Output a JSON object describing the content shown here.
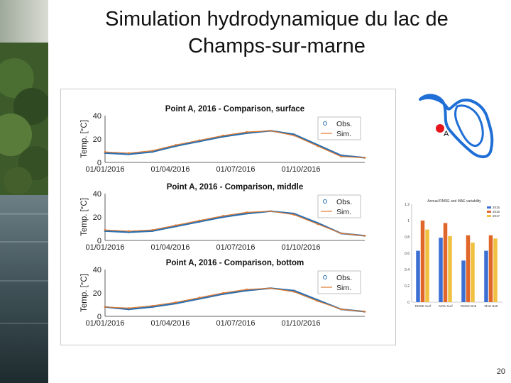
{
  "slide": {
    "title_line1": "Simulation hydrodynamique du lac de",
    "title_line2": "Champs-sur-marne",
    "page_number": "20"
  },
  "map": {
    "point_label": "A",
    "point_color": "#e8141c",
    "outline_color": "#1f6fd6"
  },
  "colors": {
    "obs": "#2a6fb0",
    "sim": "#e07a30",
    "bar_2015": "#3b6fd4",
    "bar_2016": "#e0662a",
    "bar_2017": "#f0c040"
  },
  "chart_data": [
    {
      "type": "line",
      "title": "Point A, 2016 - Comparison, surface",
      "ylabel": "Temp. [°C]",
      "ylim": [
        0,
        40
      ],
      "yticks": [
        "0",
        "20",
        "40"
      ],
      "xticks": [
        "01/01/2016",
        "01/04/2016",
        "01/07/2016",
        "01/10/2016"
      ],
      "legend": [
        "Obs.",
        "Sim."
      ],
      "legend_position": "top-right",
      "x": [
        "2016-01",
        "2016-02",
        "2016-03",
        "2016-04",
        "2016-05",
        "2016-06",
        "2016-07",
        "2016-08",
        "2016-09",
        "2016-10",
        "2016-11",
        "2016-12"
      ],
      "series": [
        {
          "name": "Obs.",
          "values": [
            8,
            7,
            9,
            14,
            18,
            22,
            25,
            27,
            24,
            15,
            6,
            4
          ]
        },
        {
          "name": "Sim.",
          "values": [
            9,
            8,
            10,
            15,
            19,
            23,
            26,
            27,
            23,
            14,
            5,
            4
          ]
        }
      ]
    },
    {
      "type": "line",
      "title": "Point A, 2016 - Comparison, middle",
      "ylabel": "Temp. [°C]",
      "ylim": [
        0,
        40
      ],
      "yticks": [
        "0",
        "20",
        "40"
      ],
      "xticks": [
        "01/01/2016",
        "01/04/2016",
        "01/07/2016",
        "01/10/2016"
      ],
      "legend": [
        "Obs.",
        "Sim."
      ],
      "legend_position": "top-right",
      "x": [
        "2016-01",
        "2016-02",
        "2016-03",
        "2016-04",
        "2016-05",
        "2016-06",
        "2016-07",
        "2016-08",
        "2016-09",
        "2016-10",
        "2016-11",
        "2016-12"
      ],
      "series": [
        {
          "name": "Obs.",
          "values": [
            8,
            7,
            8,
            12,
            16,
            20,
            23,
            25,
            23,
            15,
            6,
            4
          ]
        },
        {
          "name": "Sim.",
          "values": [
            9,
            8,
            9,
            13,
            17,
            21,
            24,
            25,
            22,
            14,
            6,
            4
          ]
        }
      ]
    },
    {
      "type": "line",
      "title": "Point A, 2016 - Comparison, bottom",
      "ylabel": "Temp. [°C]",
      "ylim": [
        0,
        40
      ],
      "yticks": [
        "0",
        "20",
        "40"
      ],
      "xticks": [
        "01/01/2016",
        "01/04/2016",
        "01/07/2016",
        "01/10/2016"
      ],
      "legend": [
        "Obs.",
        "Sim."
      ],
      "legend_position": "top-right",
      "x": [
        "2016-01",
        "2016-02",
        "2016-03",
        "2016-04",
        "2016-05",
        "2016-06",
        "2016-07",
        "2016-08",
        "2016-09",
        "2016-10",
        "2016-11",
        "2016-12"
      ],
      "series": [
        {
          "name": "Obs.",
          "values": [
            8,
            6,
            8,
            11,
            15,
            19,
            22,
            24,
            22,
            14,
            6,
            4
          ]
        },
        {
          "name": "Sim.",
          "values": [
            8,
            7,
            9,
            12,
            16,
            20,
            23,
            24,
            21,
            13,
            6,
            4
          ]
        }
      ]
    },
    {
      "type": "bar",
      "title": "Annual RMSE and MAE variability",
      "categories": [
        "RMSE Surf",
        "MAE Surf",
        "RMSE Bott",
        "MAE Bott"
      ],
      "ylim": [
        0,
        1.2
      ],
      "yticks": [
        "0",
        "0.2",
        "0.4",
        "0.6",
        "0.8",
        "1",
        "1.2"
      ],
      "legend": [
        "2015",
        "2016",
        "2017"
      ],
      "legend_position": "top-right",
      "series": [
        {
          "name": "2015",
          "values": [
            0.63,
            0.79,
            0.51,
            0.63
          ]
        },
        {
          "name": "2016",
          "values": [
            1.0,
            0.97,
            0.82,
            0.82
          ]
        },
        {
          "name": "2017",
          "values": [
            0.89,
            0.81,
            0.73,
            0.78
          ]
        }
      ]
    }
  ]
}
